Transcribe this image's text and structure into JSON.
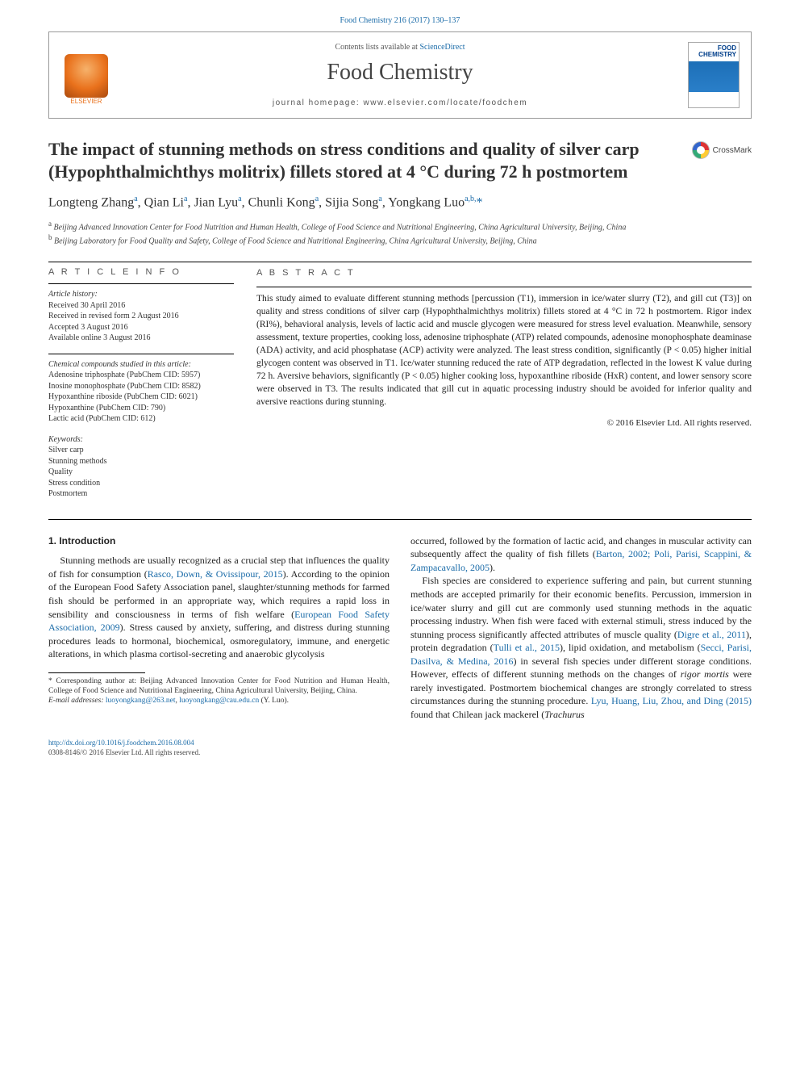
{
  "citation_line": "Food Chemistry 216 (2017) 130–137",
  "header": {
    "contents_prefix": "Contents lists available at ",
    "contents_link": "ScienceDirect",
    "journal": "Food Chemistry",
    "homepage_prefix": "journal homepage: ",
    "homepage_url": "www.elsevier.com/locate/foodchem",
    "publisher_logo_label": "ELSEVIER",
    "cover_label_line1": "FOOD",
    "cover_label_line2": "CHEMISTRY"
  },
  "article": {
    "title": "The impact of stunning methods on stress conditions and quality of silver carp (Hypophthalmichthys molitrix) fillets stored at 4 °C during 72 h postmortem",
    "crossmark": "CrossMark"
  },
  "authors_html": "Longteng Zhang<sup>a</sup>, Qian Li<sup>a</sup>, Jian Lyu<sup>a</sup>, Chunli Kong<sup>a</sup>, Sijia Song<sup>a</sup>, Yongkang Luo<sup>a,b,</sup><span class='star'>*</span>",
  "affiliations": {
    "a": "Beijing Advanced Innovation Center for Food Nutrition and Human Health, College of Food Science and Nutritional Engineering, China Agricultural University, Beijing, China",
    "b": "Beijing Laboratory for Food Quality and Safety, College of Food Science and Nutritional Engineering, China Agricultural University, Beijing, China"
  },
  "info": {
    "label_info": "A R T I C L E   I N F O",
    "label_abstract": "A B S T R A C T",
    "history_head": "Article history:",
    "history": [
      "Received 30 April 2016",
      "Received in revised form 2 August 2016",
      "Accepted 3 August 2016",
      "Available online 3 August 2016"
    ],
    "compounds_head": "Chemical compounds studied in this article:",
    "compounds": [
      "Adenosine triphosphate (PubChem CID: 5957)",
      "Inosine monophosphate (PubChem CID: 8582)",
      "Hypoxanthine riboside (PubChem CID: 6021)",
      "Hypoxanthine (PubChem CID: 790)",
      "Lactic acid (PubChem CID: 612)"
    ],
    "keywords_head": "Keywords:",
    "keywords": [
      "Silver carp",
      "Stunning methods",
      "Quality",
      "Stress condition",
      "Postmortem"
    ]
  },
  "abstract": "This study aimed to evaluate different stunning methods [percussion (T1), immersion in ice/water slurry (T2), and gill cut (T3)] on quality and stress conditions of silver carp (Hypophthalmichthys molitrix) fillets stored at 4 °C in 72 h postmortem. Rigor index (RI%), behavioral analysis, levels of lactic acid and muscle glycogen were measured for stress level evaluation. Meanwhile, sensory assessment, texture properties, cooking loss, adenosine triphosphate (ATP) related compounds, adenosine monophosphate deaminase (ADA) activity, and acid phosphatase (ACP) activity were analyzed. The least stress condition, significantly (P < 0.05) higher initial glycogen content was observed in T1. Ice/water stunning reduced the rate of ATP degradation, reflected in the lowest K value during 72 h. Aversive behaviors, significantly (P < 0.05) higher cooking loss, hypoxanthine riboside (HxR) content, and lower sensory score were observed in T3. The results indicated that gill cut in aquatic processing industry should be avoided for inferior quality and aversive reactions during stunning.",
  "copyright": "© 2016 Elsevier Ltd. All rights reserved.",
  "section1_head": "1. Introduction",
  "para1": "Stunning methods are usually recognized as a crucial step that influences the quality of fish for consumption (Rasco, Down, & Ovissipour, 2015). According to the opinion of the European Food Safety Association panel, slaughter/stunning methods for farmed fish should be performed in an appropriate way, which requires a rapid loss in sensibility and consciousness in terms of fish welfare (European Food Safety Association, 2009). Stress caused by anxiety, suffering, and distress during stunning procedures leads to hormonal, biochemical, osmoregulatory, immune, and energetic alterations, in which plasma cortisol-secreting and anaerobic glycolysis",
  "para1b": "occurred, followed by the formation of lactic acid, and changes in muscular activity can subsequently affect the quality of fish fillets (Barton, 2002; Poli, Parisi, Scappini, & Zampacavallo, 2005).",
  "para2": "Fish species are considered to experience suffering and pain, but current stunning methods are accepted primarily for their economic benefits. Percussion, immersion in ice/water slurry and gill cut are commonly used stunning methods in the aquatic processing industry. When fish were faced with external stimuli, stress induced by the stunning process significantly affected attributes of muscle quality (Digre et al., 2011), protein degradation (Tulli et al., 2015), lipid oxidation, and metabolism (Secci, Parisi, Dasilva, & Medina, 2016) in several fish species under different storage conditions. However, effects of different stunning methods on the changes of rigor mortis were rarely investigated. Postmortem biochemical changes are strongly correlated to stress circumstances during the stunning procedure. Lyu, Huang, Liu, Zhou, and Ding (2015) found that Chilean jack mackerel (Trachurus",
  "footnotes": {
    "corr": "* Corresponding author at: Beijing Advanced Innovation Center for Food Nutrition and Human Health, College of Food Science and Nutritional Engineering, China Agricultural University, Beijing, China.",
    "email_label": "E-mail addresses:",
    "email1": "luoyongkang@263.net",
    "email2": "luoyongkang@cau.edu.cn",
    "email_person": "(Y. Luo)."
  },
  "footer": {
    "doi": "http://dx.doi.org/10.1016/j.foodchem.2016.08.004",
    "issn_line": "0308-8146/© 2016 Elsevier Ltd. All rights reserved."
  },
  "colors": {
    "link": "#1a6ba8",
    "elsevier_orange": "#e9711c",
    "text": "#222222"
  }
}
